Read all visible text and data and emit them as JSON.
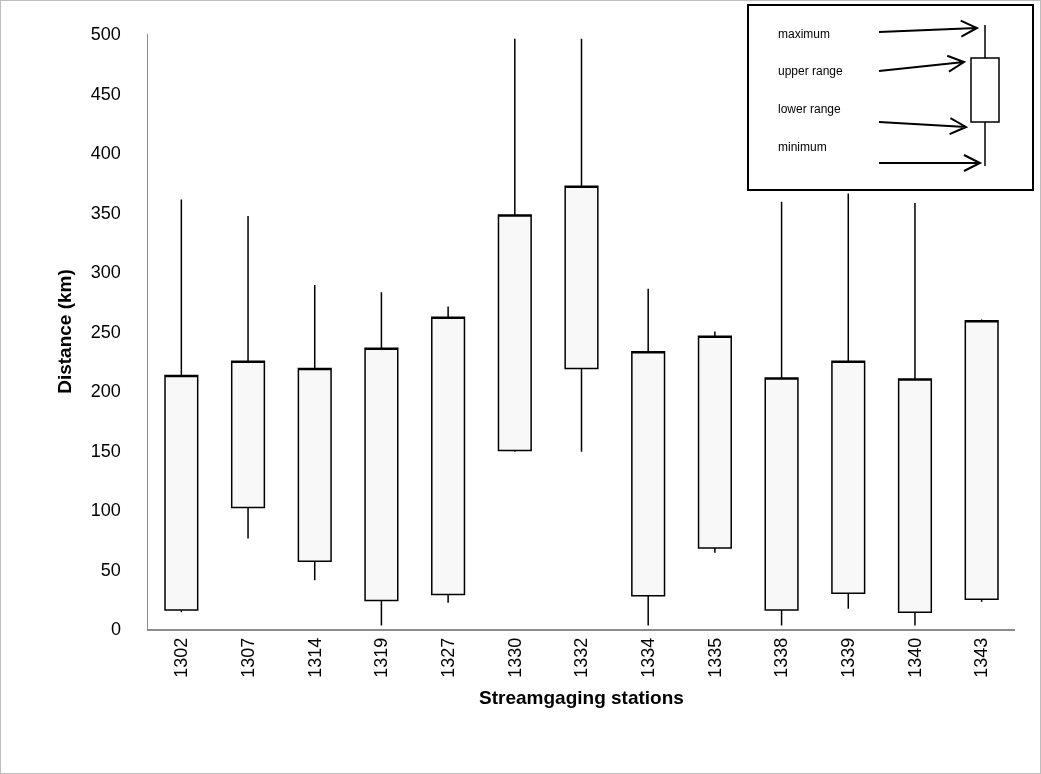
{
  "chart_data": {
    "type": "candlestick",
    "xlabel": "Streamgaging stations",
    "ylabel": "Distance (km)",
    "categories": [
      "1302",
      "1307",
      "1314",
      "1319",
      "1327",
      "1330",
      "1332",
      "1334",
      "1335",
      "1338",
      "1339",
      "1340",
      "1343"
    ],
    "ohlc": [
      [
        16,
        361,
        14,
        213
      ],
      [
        102,
        347,
        76,
        225
      ],
      [
        57,
        289,
        41,
        219
      ],
      [
        24,
        283,
        3,
        236
      ],
      [
        29,
        271,
        22,
        262
      ],
      [
        150,
        496,
        149,
        348
      ],
      [
        219,
        496,
        149,
        372
      ],
      [
        28,
        286,
        3,
        233
      ],
      [
        68,
        250,
        64,
        246
      ],
      [
        16,
        359,
        3,
        211
      ],
      [
        30,
        366,
        17,
        225
      ],
      [
        14,
        358,
        3,
        210
      ],
      [
        25,
        260,
        23,
        259
      ]
    ],
    "color": "#f8f8f8",
    "ylim": [
      0,
      500
    ],
    "yticks": [
      0,
      50,
      100,
      150,
      200,
      250,
      300,
      350,
      400,
      450,
      500
    ],
    "grid": false,
    "legend": false,
    "annotations": [
      "maximum",
      "upper range",
      "lower range",
      "minimum"
    ]
  }
}
